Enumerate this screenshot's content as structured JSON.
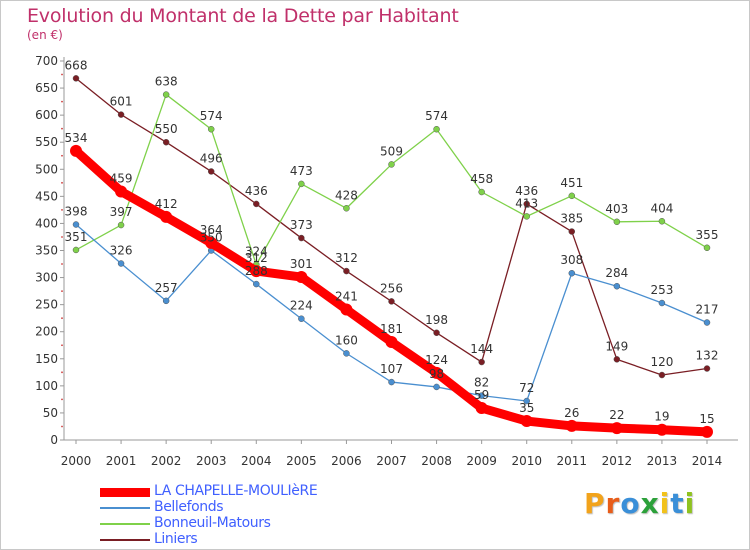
{
  "title": "Evolution du Montant de la Dette par Habitant",
  "subtitle": "(en €)",
  "logo": {
    "text": "Proxiti",
    "colors": [
      "#f2a31b",
      "#e85d1a",
      "#3a8fd8",
      "#2ca13a",
      "#f2c21b",
      "#3a8fd8",
      "#8fc31f"
    ]
  },
  "chart_data": {
    "type": "line",
    "x": [
      "2000",
      "2001",
      "2002",
      "2003",
      "2004",
      "2005",
      "2006",
      "2007",
      "2008",
      "2009",
      "2010",
      "2011",
      "2012",
      "2013",
      "2014"
    ],
    "ylim": [
      0,
      700
    ],
    "yticks": [
      0,
      50,
      100,
      150,
      200,
      250,
      300,
      350,
      400,
      450,
      500,
      550,
      600,
      650,
      700
    ],
    "grid": false,
    "legend_position": "bottom-left",
    "series": [
      {
        "name": "LA CHAPELLE-MOULIèRE",
        "color": "#ff0000",
        "values": [
          534,
          459,
          412,
          364,
          312,
          301,
          241,
          181,
          124,
          59,
          35,
          26,
          22,
          19,
          15
        ]
      },
      {
        "name": "Bellefonds",
        "color": "#4a8fd0",
        "values": [
          398,
          326,
          257,
          350,
          288,
          224,
          160,
          107,
          98,
          82,
          72,
          308,
          284,
          253,
          217
        ]
      },
      {
        "name": "Bonneuil-Matours",
        "color": "#7fd14a",
        "values": [
          351,
          397,
          638,
          574,
          324,
          473,
          428,
          509,
          574,
          458,
          413,
          451,
          403,
          404,
          355
        ]
      },
      {
        "name": "Liniers",
        "color": "#7a1e24",
        "values": [
          668,
          601,
          550,
          496,
          436,
          373,
          312,
          256,
          198,
          144,
          436,
          385,
          149,
          120,
          132
        ]
      }
    ],
    "data_labels": [
      {
        "series": 0,
        "labels": [
          "534",
          "459",
          "412",
          "364",
          "312",
          "301",
          "241",
          "181",
          "124",
          "59",
          "35",
          "26",
          "22",
          "19",
          "15"
        ]
      },
      {
        "series": 1,
        "labels": [
          "398",
          "326",
          "257",
          "350",
          "288",
          "224",
          "160",
          "107",
          "98",
          "82",
          "72",
          "308",
          "284",
          "253",
          "217"
        ]
      },
      {
        "series": 2,
        "labels": [
          "351",
          "397",
          "638",
          "574",
          "324",
          "473",
          "428",
          "509",
          "574",
          "458",
          "413",
          "451",
          "403",
          "404",
          "355"
        ]
      },
      {
        "series": 3,
        "labels": [
          "668",
          "601",
          "550",
          "496",
          "436",
          "373",
          "312",
          "256",
          "198",
          "144",
          "436",
          "385",
          "149",
          "120",
          "132"
        ]
      }
    ]
  }
}
